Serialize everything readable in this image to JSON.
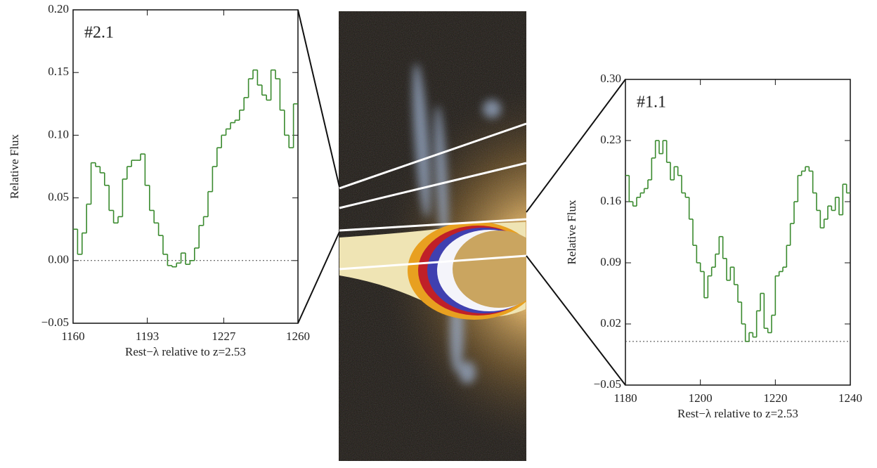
{
  "chart_data": [
    {
      "type": "line",
      "title": "#2.1",
      "xlabel": "Rest−λ relative to z=2.53",
      "ylabel": "Relative Flux",
      "xlim": [
        1160,
        1260
      ],
      "xticks": [
        1160,
        1193,
        1227,
        1260
      ],
      "ylim": [
        -0.05,
        0.2
      ],
      "yticks": [
        {
          "value": -0.05,
          "label": "−0.05"
        },
        {
          "value": 0,
          "label": "0.00"
        },
        {
          "value": 0.05,
          "label": "0.05"
        },
        {
          "value": 0.1,
          "label": "0.10"
        },
        {
          "value": 0.15,
          "label": "0.15"
        },
        {
          "value": 0.2,
          "label": "0.20"
        }
      ],
      "reference_line": 0,
      "series": [
        {
          "color": "#3a8a2e",
          "x": [
            1160,
            1162,
            1164,
            1166,
            1168,
            1170,
            1172,
            1174,
            1176,
            1178,
            1180,
            1182,
            1184,
            1186,
            1188,
            1190,
            1192,
            1194,
            1196,
            1198,
            1200,
            1202,
            1204,
            1206,
            1208,
            1210,
            1212,
            1214,
            1216,
            1218,
            1220,
            1222,
            1224,
            1226,
            1228,
            1230,
            1232,
            1234,
            1236,
            1238,
            1240,
            1242,
            1244,
            1246,
            1248,
            1250,
            1252,
            1254,
            1256,
            1258
          ],
          "values": [
            0.025,
            0.005,
            0.022,
            0.045,
            0.078,
            0.075,
            0.07,
            0.06,
            0.04,
            0.03,
            0.035,
            0.065,
            0.075,
            0.08,
            0.08,
            0.085,
            0.06,
            0.04,
            0.03,
            0.02,
            0.005,
            -0.004,
            -0.005,
            -0.002,
            0.006,
            -0.003,
            0.0,
            0.01,
            0.028,
            0.035,
            0.055,
            0.075,
            0.09,
            0.1,
            0.105,
            0.11,
            0.112,
            0.12,
            0.13,
            0.145,
            0.152,
            0.14,
            0.132,
            0.128,
            0.152,
            0.145,
            0.12,
            0.1,
            0.09,
            0.125
          ]
        }
      ]
    },
    {
      "type": "line",
      "title": "#1.1",
      "xlabel": "Rest−λ relative to z=2.53",
      "ylabel": "Relative Flux",
      "xlim": [
        1180,
        1240
      ],
      "xticks": [
        1180,
        1200,
        1220,
        1240
      ],
      "ylim": [
        -0.05,
        0.3
      ],
      "yticks": [
        {
          "value": -0.05,
          "label": "−0.05"
        },
        {
          "value": 0.02,
          "label": "0.02"
        },
        {
          "value": 0.09,
          "label": "0.09"
        },
        {
          "value": 0.16,
          "label": "0.16"
        },
        {
          "value": 0.23,
          "label": "0.23"
        },
        {
          "value": 0.3,
          "label": "0.30"
        }
      ],
      "reference_line": 0,
      "series": [
        {
          "color": "#3a8a2e",
          "x": [
            1180,
            1181,
            1182,
            1183,
            1184,
            1185,
            1186,
            1187,
            1188,
            1189,
            1190,
            1191,
            1192,
            1193,
            1194,
            1195,
            1196,
            1197,
            1198,
            1199,
            1200,
            1201,
            1202,
            1203,
            1204,
            1205,
            1206,
            1207,
            1208,
            1209,
            1210,
            1211,
            1212,
            1213,
            1214,
            1215,
            1216,
            1217,
            1218,
            1219,
            1220,
            1221,
            1222,
            1223,
            1224,
            1225,
            1226,
            1227,
            1228,
            1229,
            1230,
            1231,
            1232,
            1233,
            1234,
            1235,
            1236,
            1237,
            1238,
            1239
          ],
          "values": [
            0.19,
            0.16,
            0.155,
            0.165,
            0.17,
            0.175,
            0.185,
            0.21,
            0.23,
            0.215,
            0.23,
            0.205,
            0.185,
            0.2,
            0.19,
            0.17,
            0.165,
            0.14,
            0.11,
            0.09,
            0.08,
            0.05,
            0.075,
            0.085,
            0.1,
            0.12,
            0.095,
            0.07,
            0.085,
            0.065,
            0.045,
            0.02,
            0.0,
            0.01,
            0.005,
            0.035,
            0.055,
            0.015,
            0.01,
            0.03,
            0.075,
            0.08,
            0.085,
            0.11,
            0.135,
            0.16,
            0.19,
            0.195,
            0.2,
            0.195,
            0.17,
            0.15,
            0.13,
            0.14,
            0.155,
            0.15,
            0.165,
            0.145,
            0.18,
            0.17
          ]
        }
      ]
    }
  ]
}
